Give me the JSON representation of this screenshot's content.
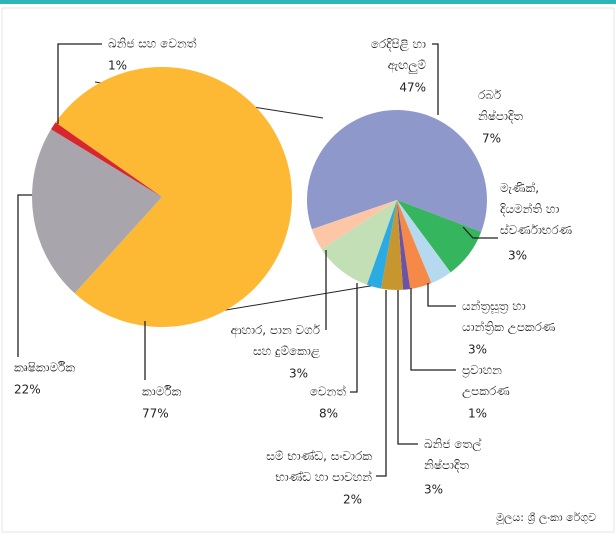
{
  "chart_data": {
    "type": "pie-of-pie",
    "main": {
      "categories": [
        "කාර්මික",
        "කෘෂිකාර්මික",
        "ඛනිජ සහ වෙනත්"
      ],
      "values": [
        77,
        22,
        1
      ],
      "value_labels": [
        "77%",
        "22%",
        "1%"
      ],
      "colors": [
        "#fdb934",
        "#a8a6ac",
        "#d7262e"
      ]
    },
    "detail": {
      "categories": [
        "රෙදිපිළි හා\nඇඟලුම්",
        "රබර්\nනිෂ්පාදිත",
        "මැණික්,\nදියමන්ති හා\nස්වර්ණාභරණ",
        "යන්ත්‍රසූත්‍ර හා\nයාන්ත්‍රික උපකරණ",
        "ප්‍රවාහන\nඋපකරණ",
        "ඛනිජ තෙල්\nනිෂ්පාදිත",
        "සම් භාණ්ඩ, සංචාරක\nභාණ්ඩ හා පාවහන්",
        "වෙනත්",
        "ආහාර, පාන වර්ග\nසහ දුම්කොළ"
      ],
      "values": [
        47,
        7,
        3,
        3,
        1,
        3,
        2,
        8,
        3
      ],
      "value_labels": [
        "47%",
        "7%",
        "3%",
        "3%",
        "1%",
        "3%",
        "2%",
        "8%",
        "3%"
      ],
      "colors": [
        "#8f98cb",
        "#35b55d",
        "#b5d9ee",
        "#f58a48",
        "#6f53a3",
        "#c8962f",
        "#2aabe2",
        "#c3dfb5",
        "#fdc7a7"
      ]
    },
    "source": "මූලය: ශ්‍රී ලංකා රේගුව"
  }
}
